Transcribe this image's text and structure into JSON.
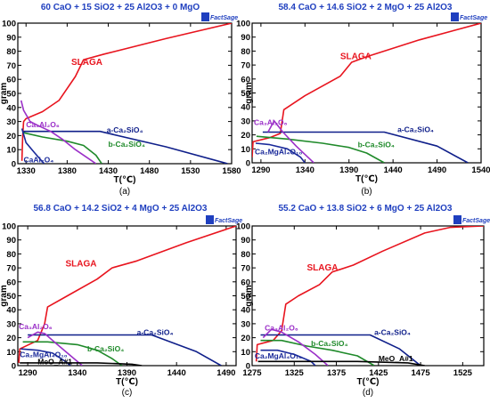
{
  "logo_text": "FactSage",
  "colors": {
    "title": "#1f3fbf",
    "slag": "#e8141e",
    "a_c2s": "#0f1f8a",
    "b_c2s": "#1f8a2a",
    "c3a": "#9b30c8",
    "spinel": "#1a2a9a",
    "meo": "#000000",
    "frame": "#000000"
  },
  "chart_data": [
    {
      "type": "line",
      "panel_label": "(a)",
      "title": "60 CaO + 15 SiO2 + 25 Al2O3 + 0 MgO",
      "xlabel": "T(℃)",
      "ylabel": "gram",
      "xlim": [
        1320,
        1580
      ],
      "ylim": [
        0,
        100
      ],
      "xticks": [
        1330,
        1380,
        1430,
        1480,
        1530,
        1580
      ],
      "yticks": [
        0,
        10,
        20,
        30,
        40,
        50,
        60,
        70,
        80,
        90,
        100
      ],
      "series": [
        {
          "key": "slag",
          "label_text": "SLAGA",
          "label_at": [
            1385,
            72
          ],
          "points": [
            [
              1325,
              2
            ],
            [
              1326,
              20
            ],
            [
              1327,
              30
            ],
            [
              1330,
              32
            ],
            [
              1350,
              37
            ],
            [
              1370,
              45
            ],
            [
              1390,
              62
            ],
            [
              1400,
              74
            ],
            [
              1425,
              78
            ],
            [
              1500,
              89
            ],
            [
              1580,
              100
            ]
          ]
        },
        {
          "key": "a_c2s",
          "label_text": "a-Ca₂SiO₄",
          "label_at": [
            1428,
            24
          ],
          "points": [
            [
              1327,
              23
            ],
            [
              1420,
              23
            ],
            [
              1500,
              12
            ],
            [
              1575,
              0
            ]
          ]
        },
        {
          "key": "b_c2s",
          "label_text": "b-Ca₂SiO₄",
          "label_at": [
            1430,
            14
          ],
          "points": [
            [
              1327,
              22
            ],
            [
              1350,
              19
            ],
            [
              1380,
              16
            ],
            [
              1400,
              13
            ],
            [
              1415,
              6
            ],
            [
              1422,
              0
            ]
          ]
        },
        {
          "key": "c3a",
          "label_text": "Ca₃Al₂O₆",
          "label_at": [
            1330,
            28
          ],
          "points": [
            [
              1324,
              45
            ],
            [
              1327,
              38
            ],
            [
              1335,
              30
            ],
            [
              1345,
              27
            ],
            [
              1360,
              23
            ],
            [
              1375,
              17
            ],
            [
              1390,
              10
            ],
            [
              1410,
              2
            ],
            [
              1415,
              0
            ]
          ]
        },
        {
          "key": "spinel",
          "label_text": "CaAl₂O₄",
          "label_at": [
            1327,
            3
          ],
          "points": [
            [
              1325,
              25
            ],
            [
              1330,
              15
            ],
            [
              1340,
              8
            ],
            [
              1352,
              0
            ]
          ]
        }
      ]
    },
    {
      "type": "line",
      "panel_label": "(b)",
      "title": "58.4 CaO + 14.6 SiO2 + 2 MgO + 25 Al2O3",
      "xlabel": "T(℃)",
      "ylabel": "gram",
      "xlim": [
        1280,
        1540
      ],
      "ylim": [
        0,
        100
      ],
      "xticks": [
        1290,
        1340,
        1390,
        1440,
        1490,
        1540
      ],
      "yticks": [
        0,
        10,
        20,
        30,
        40,
        50,
        60,
        70,
        80,
        90,
        100
      ],
      "series": [
        {
          "key": "slag",
          "label_text": "SLAGA",
          "label_at": [
            1380,
            76
          ],
          "points": [
            [
              1280,
              4
            ],
            [
              1281,
              15
            ],
            [
              1300,
              18
            ],
            [
              1312,
              21
            ],
            [
              1316,
              38
            ],
            [
              1340,
              48
            ],
            [
              1380,
              62
            ],
            [
              1393,
              72
            ],
            [
              1410,
              76
            ],
            [
              1470,
              88
            ],
            [
              1540,
              100
            ]
          ]
        },
        {
          "key": "a_c2s",
          "label_text": "a-Ca₂SiO₄",
          "label_at": [
            1445,
            24
          ],
          "points": [
            [
              1292,
              22
            ],
            [
              1430,
              22
            ],
            [
              1490,
              12
            ],
            [
              1525,
              0
            ]
          ]
        },
        {
          "key": "b_c2s",
          "label_text": "b-Ca₂SiO₄",
          "label_at": [
            1400,
            13
          ],
          "points": [
            [
              1285,
              19
            ],
            [
              1320,
              17
            ],
            [
              1360,
              14
            ],
            [
              1390,
              11
            ],
            [
              1410,
              7
            ],
            [
              1430,
              0
            ]
          ]
        },
        {
          "key": "c3a",
          "label_text": "Ca₃Al₂O₆",
          "label_at": [
            1282,
            29
          ],
          "points": [
            [
              1298,
              22
            ],
            [
              1305,
              30
            ],
            [
              1310,
              26
            ],
            [
              1315,
              22
            ],
            [
              1330,
              12
            ],
            [
              1345,
              3
            ],
            [
              1350,
              0
            ]
          ]
        },
        {
          "key": "spinel",
          "label_text": "Ca₂MgAl₄O₁₀",
          "label_at": [
            1283,
            8
          ],
          "points": [
            [
              1284,
              14
            ],
            [
              1300,
              13
            ],
            [
              1320,
              10
            ],
            [
              1335,
              4
            ],
            [
              1340,
              0
            ]
          ]
        }
      ]
    },
    {
      "type": "line",
      "panel_label": "(c)",
      "title": "56.8 CaO + 14.2 SiO2 + 4 MgO + 25 Al2O3",
      "xlabel": "T(℃)",
      "ylabel": "gram",
      "xlim": [
        1280,
        1500
      ],
      "ylim": [
        0,
        100
      ],
      "xticks": [
        1290,
        1340,
        1390,
        1440,
        1490
      ],
      "yticks": [
        0,
        10,
        20,
        30,
        40,
        50,
        60,
        70,
        80,
        90,
        100
      ],
      "series": [
        {
          "key": "slag",
          "label_text": "SLAGA",
          "label_at": [
            1328,
            73
          ],
          "points": [
            [
              1281,
              2
            ],
            [
              1282,
              12
            ],
            [
              1300,
              18
            ],
            [
              1307,
              30
            ],
            [
              1310,
              42
            ],
            [
              1330,
              50
            ],
            [
              1360,
              62
            ],
            [
              1375,
              70
            ],
            [
              1400,
              75
            ],
            [
              1450,
              88
            ],
            [
              1500,
              100
            ]
          ]
        },
        {
          "key": "a_c2s",
          "label_text": "a-Ca₂SiO₄",
          "label_at": [
            1400,
            24
          ],
          "points": [
            [
              1290,
              22
            ],
            [
              1415,
              22
            ],
            [
              1460,
              10
            ],
            [
              1485,
              0
            ]
          ]
        },
        {
          "key": "b_c2s",
          "label_text": "b-Ca₂SiO₄",
          "label_at": [
            1350,
            12
          ],
          "points": [
            [
              1285,
              17
            ],
            [
              1310,
              17
            ],
            [
              1340,
              15
            ],
            [
              1360,
              11
            ],
            [
              1375,
              5
            ],
            [
              1385,
              0
            ]
          ]
        },
        {
          "key": "c3a",
          "label_text": "Ca₃Al₂O₆",
          "label_at": [
            1281,
            28
          ],
          "points": [
            [
              1290,
              20
            ],
            [
              1300,
              24
            ],
            [
              1307,
              23
            ],
            [
              1320,
              15
            ],
            [
              1335,
              6
            ],
            [
              1345,
              0
            ]
          ]
        },
        {
          "key": "spinel",
          "label_text": "Ca₂MgAl₄O₁₀",
          "label_at": [
            1282,
            8
          ],
          "points": [
            [
              1283,
              12
            ],
            [
              1300,
              11
            ],
            [
              1315,
              9
            ],
            [
              1328,
              3
            ],
            [
              1333,
              0
            ]
          ]
        },
        {
          "key": "meo",
          "label_text": "MeO_A#1",
          "label_at": [
            1300,
            3
          ],
          "points": [
            [
              1282,
              2
            ],
            [
              1360,
              2
            ],
            [
              1395,
              1
            ],
            [
              1405,
              0
            ]
          ]
        }
      ]
    },
    {
      "type": "line",
      "panel_label": "(d)",
      "title": "55.2 CaO + 13.8 SiO2 + 6 MgO + 25 Al2O3",
      "xlabel": "T(℃)",
      "ylabel": "gram",
      "xlim": [
        1275,
        1550
      ],
      "ylim": [
        0,
        100
      ],
      "xticks": [
        1275,
        1325,
        1375,
        1425,
        1475,
        1525
      ],
      "yticks": [
        0,
        10,
        20,
        30,
        40,
        50,
        60,
        70,
        80,
        90,
        100
      ],
      "series": [
        {
          "key": "slag",
          "label_text": "SLAGA",
          "label_at": [
            1340,
            70
          ],
          "points": [
            [
              1280,
              3
            ],
            [
              1281,
              15
            ],
            [
              1300,
              18
            ],
            [
              1310,
              25
            ],
            [
              1315,
              44
            ],
            [
              1330,
              50
            ],
            [
              1355,
              58
            ],
            [
              1370,
              67
            ],
            [
              1395,
              72
            ],
            [
              1430,
              82
            ],
            [
              1480,
              95
            ],
            [
              1510,
              99
            ],
            [
              1550,
              100
            ]
          ]
        },
        {
          "key": "a_c2s",
          "label_text": "a-Ca₂SiO₄",
          "label_at": [
            1420,
            24
          ],
          "points": [
            [
              1285,
              22
            ],
            [
              1415,
              22
            ],
            [
              1450,
              12
            ],
            [
              1475,
              0
            ]
          ]
        },
        {
          "key": "b_c2s",
          "label_text": "b-Ca₂SiO₄",
          "label_at": [
            1345,
            16
          ],
          "points": [
            [
              1285,
              18
            ],
            [
              1310,
              18
            ],
            [
              1340,
              14
            ],
            [
              1370,
              11
            ],
            [
              1400,
              7
            ],
            [
              1420,
              0
            ]
          ]
        },
        {
          "key": "c3a",
          "label_text": "Ca₃Al₂O₆",
          "label_at": [
            1290,
            27
          ],
          "points": [
            [
              1288,
              20
            ],
            [
              1298,
              26
            ],
            [
              1310,
              24
            ],
            [
              1330,
              17
            ],
            [
              1350,
              8
            ],
            [
              1365,
              0
            ]
          ]
        },
        {
          "key": "spinel",
          "label_text": "Ca₂MgAl₄O₁₀",
          "label_at": [
            1278,
            7
          ],
          "points": [
            [
              1285,
              11
            ],
            [
              1305,
              11
            ],
            [
              1325,
              8
            ],
            [
              1345,
              3
            ],
            [
              1350,
              0
            ]
          ]
        },
        {
          "key": "meo",
          "label_text": "MeO_A#1",
          "label_at": [
            1425,
            5
          ],
          "points": [
            [
              1282,
              3
            ],
            [
              1400,
              3
            ],
            [
              1460,
              2
            ],
            [
              1480,
              0
            ]
          ]
        }
      ]
    }
  ]
}
